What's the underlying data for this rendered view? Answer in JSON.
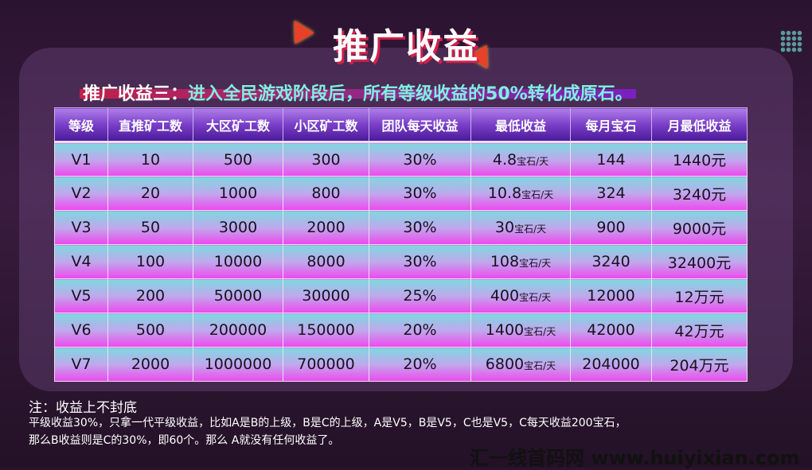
{
  "title": "推广收益",
  "subtitle": {
    "prefix": "推广收益三：",
    "text": "进入全民游戏阶段后，所有等级收益的50%转化成原石。"
  },
  "table": {
    "headers": [
      "等级",
      "直推矿工数",
      "大区矿工数",
      "小区矿工数",
      "团队每天收益",
      "最低收益",
      "每月宝石",
      "月最低收益"
    ],
    "unit": "宝石/天",
    "rows": [
      [
        "V1",
        "10",
        "500",
        "300",
        "30%",
        "4.8",
        "144",
        "1440元"
      ],
      [
        "V2",
        "20",
        "1000",
        "800",
        "30%",
        "10.8",
        "324",
        "3240元"
      ],
      [
        "V3",
        "50",
        "3000",
        "2000",
        "30%",
        "30",
        "900",
        "9000元"
      ],
      [
        "V4",
        "100",
        "10000",
        "8000",
        "30%",
        "108",
        "3240",
        "32400元"
      ],
      [
        "V5",
        "200",
        "50000",
        "30000",
        "25%",
        "400",
        "12000",
        "12万元"
      ],
      [
        "V6",
        "500",
        "200000",
        "150000",
        "20%",
        "1400",
        "42000",
        "42万元"
      ],
      [
        "V7",
        "2000",
        "1000000",
        "700000",
        "20%",
        "6800",
        "204000",
        "204万元"
      ]
    ]
  },
  "note": "注：收益上不封底",
  "description": [
    "平级收益30%，只拿一代平级收益，比如A是B的上级，B是C的上级，A是V5，B是V5，C也是V5，C每天收益200宝石，",
    "那么B收益则是C的30%，即60个。那么  A就没有任何收益了。"
  ],
  "watermark": "汇一线首码网 www.huiyixian.com"
}
